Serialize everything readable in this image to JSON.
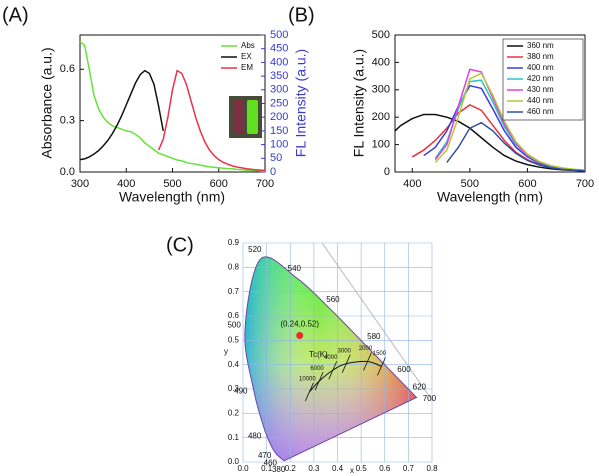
{
  "chart_data": [
    {
      "type": "line",
      "panel": "(A)",
      "xlabel": "Wavelength (nm)",
      "ylabel": "Absorbance (a.u.)",
      "y2label": "FL Intensity (a.u.)",
      "xlim": [
        300,
        700
      ],
      "xticks": [
        300,
        400,
        500,
        600,
        700
      ],
      "ylim": [
        0,
        0.8
      ],
      "yticks": [
        {
          "value": 0,
          "label": "0.0"
        },
        0.3,
        0.6
      ],
      "y2lim": [
        0,
        500
      ],
      "y2ticks": [
        0,
        50,
        100,
        150,
        200,
        250,
        300,
        350,
        400,
        450,
        500
      ],
      "legend": "upper right",
      "x": [
        300,
        310,
        320,
        330,
        340,
        350,
        360,
        370,
        380,
        390,
        400,
        410,
        420,
        430,
        440,
        450,
        460,
        470,
        480,
        490,
        500,
        510,
        520,
        530,
        540,
        550,
        560,
        570,
        580,
        590,
        600,
        610,
        620,
        630,
        640,
        650,
        660,
        670,
        680,
        690,
        700
      ],
      "series": [
        {
          "name": "Abs",
          "color": "#66e23a",
          "values": [
            0.76,
            0.74,
            0.6,
            0.45,
            0.37,
            0.32,
            0.29,
            0.27,
            0.26,
            0.25,
            0.24,
            0.235,
            0.22,
            0.2,
            0.17,
            0.15,
            0.13,
            0.11,
            0.1,
            0.09,
            0.08,
            0.07,
            0.065,
            0.055,
            0.05,
            0.045,
            0.04,
            0.035,
            0.03,
            0.028,
            0.025,
            0.022,
            0.02,
            0.018,
            0.015,
            0.013,
            0.01,
            0.009,
            0.008,
            0.006,
            0.005
          ]
        },
        {
          "name": "EX",
          "color": "#111111",
          "axis": "y2",
          "values": [
            45,
            48,
            55,
            65,
            78,
            95,
            115,
            140,
            170,
            205,
            245,
            285,
            325,
            355,
            370,
            360,
            320,
            240,
            150,
            null,
            null,
            null,
            null,
            null,
            null,
            null,
            null,
            null,
            null,
            null,
            null,
            null,
            null,
            null,
            null,
            null,
            null,
            null,
            null,
            null,
            null
          ]
        },
        {
          "name": "EM",
          "color": "#e8324a",
          "axis": "y2",
          "values": [
            null,
            null,
            null,
            null,
            null,
            null,
            null,
            null,
            null,
            null,
            null,
            null,
            null,
            null,
            null,
            null,
            null,
            80,
            120,
            200,
            300,
            370,
            360,
            320,
            260,
            200,
            150,
            110,
            80,
            60,
            45,
            35,
            28,
            22,
            18,
            15,
            12,
            10,
            8,
            7,
            6
          ]
        }
      ]
    },
    {
      "type": "line",
      "panel": "(B)",
      "xlabel": "Wavelength (nm)",
      "ylabel": "FL Intensity (a.u.)",
      "xlim": [
        370,
        700
      ],
      "xticks": [
        400,
        500,
        600,
        700
      ],
      "ylim": [
        0,
        500
      ],
      "yticks": [
        0,
        100,
        200,
        300,
        400,
        500
      ],
      "legend": "upper right",
      "x": [
        370,
        380,
        400,
        420,
        440,
        460,
        480,
        500,
        520,
        540,
        560,
        580,
        600,
        620,
        640,
        660,
        680,
        700
      ],
      "series": [
        {
          "name": "360 nm",
          "color": "#111111",
          "values": [
            150,
            170,
            195,
            210,
            210,
            200,
            185,
            160,
            125,
            90,
            60,
            40,
            27,
            18,
            12,
            8,
            6,
            4
          ]
        },
        {
          "name": "380 nm",
          "color": "#e8323c",
          "values": [
            null,
            null,
            55,
            80,
            115,
            160,
            215,
            245,
            225,
            170,
            115,
            72,
            45,
            28,
            18,
            12,
            8,
            5
          ]
        },
        {
          "name": "400 nm",
          "color": "#3a3ae8",
          "values": [
            null,
            null,
            null,
            60,
            90,
            150,
            240,
            315,
            305,
            230,
            150,
            90,
            55,
            33,
            20,
            13,
            8,
            5
          ]
        },
        {
          "name": "420 nm",
          "color": "#2ec4c4",
          "values": [
            null,
            null,
            null,
            null,
            50,
            110,
            230,
            330,
            335,
            255,
            165,
            100,
            60,
            36,
            22,
            14,
            9,
            6
          ]
        },
        {
          "name": "430 nm",
          "color": "#e040e0",
          "values": [
            null,
            null,
            null,
            null,
            45,
            100,
            240,
            375,
            365,
            270,
            175,
            105,
            62,
            37,
            23,
            14,
            9,
            6
          ]
        },
        {
          "name": "440 nm",
          "color": "#b5c832",
          "values": [
            null,
            null,
            null,
            null,
            35,
            80,
            200,
            340,
            360,
            280,
            185,
            110,
            65,
            39,
            24,
            15,
            10,
            6
          ]
        },
        {
          "name": "460 nm",
          "color": "#3050a0",
          "values": [
            null,
            null,
            null,
            null,
            null,
            35,
            90,
            160,
            180,
            150,
            105,
            68,
            42,
            26,
            16,
            10,
            7,
            5
          ]
        }
      ]
    },
    {
      "type": "cie",
      "panel": "(C)",
      "xlabel": "x",
      "ylabel": "y",
      "xlim": [
        0,
        0.8
      ],
      "xticks": [
        {
          "value": 0,
          "label": "0.0"
        },
        0.1,
        0.2,
        0.3,
        0.4,
        0.5,
        0.6,
        0.7,
        0.8
      ],
      "ylim": [
        0,
        0.9
      ],
      "yticks": [
        {
          "value": 0,
          "label": "0.0"
        },
        0.1,
        0.2,
        0.3,
        0.4,
        0.5,
        0.6,
        0.7,
        0.8,
        0.9
      ],
      "grid": true,
      "locus": {
        "wavelengths": [
          380,
          460,
          470,
          480,
          490,
          500,
          520,
          540,
          560,
          580,
          600,
          620,
          700
        ],
        "x": [
          0.1741,
          0.144,
          0.1241,
          0.0913,
          0.0454,
          0.0082,
          0.0743,
          0.2296,
          0.3731,
          0.5125,
          0.627,
          0.6915,
          0.7347
        ],
        "y": [
          0.005,
          0.0297,
          0.0578,
          0.1327,
          0.295,
          0.5384,
          0.8338,
          0.7543,
          0.6245,
          0.4866,
          0.3725,
          0.3083,
          0.2653
        ]
      },
      "planckian": {
        "label": "Tc(K)",
        "temperatures": [
          10000,
          6000,
          4000,
          3000,
          2000,
          1500
        ],
        "x": [
          0.281,
          0.322,
          0.38,
          0.437,
          0.527,
          0.586
        ],
        "y": [
          0.288,
          0.332,
          0.377,
          0.404,
          0.413,
          0.393
        ]
      },
      "point": {
        "label": "(0.24,0.52)",
        "x": 0.24,
        "y": 0.52,
        "color": "#e03030"
      }
    }
  ]
}
